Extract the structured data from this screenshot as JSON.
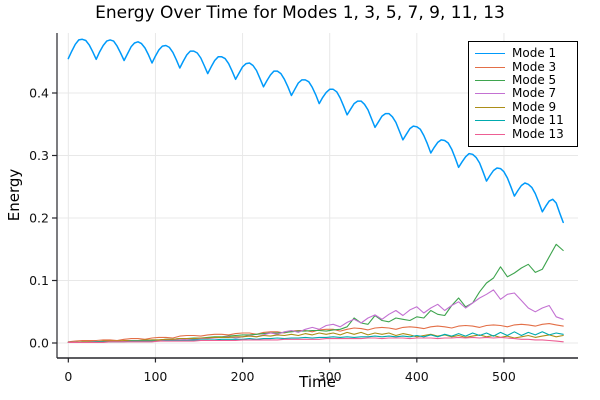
{
  "chart_data": {
    "type": "line",
    "title": "Energy Over Time for Modes 1, 3, 5, 7, 9, 11, 13",
    "xlabel": "Time",
    "ylabel": "Energy",
    "xlim": [
      -13,
      585
    ],
    "ylim": [
      -0.024,
      0.496
    ],
    "grid": true,
    "legend_position": "top-right",
    "xticks": {
      "values": [
        0,
        100,
        200,
        300,
        400,
        500
      ],
      "labels": [
        "0",
        "100",
        "200",
        "300",
        "400",
        "500"
      ]
    },
    "yticks": {
      "values": [
        0.0,
        0.1,
        0.2,
        0.3,
        0.4
      ],
      "labels": [
        "0.0",
        "0.1",
        "0.2",
        "0.3",
        "0.4"
      ]
    },
    "axis_color": "#26262b",
    "grid_color": "#e8e8e8",
    "series": [
      {
        "name": "Mode 1",
        "color": "#009AFA",
        "x": [
          0,
          4,
          8,
          12,
          16,
          20,
          24,
          28,
          32,
          36,
          40,
          44,
          48,
          52,
          56,
          60,
          64,
          68,
          72,
          76,
          80,
          84,
          88,
          92,
          96,
          100,
          104,
          108,
          112,
          116,
          120,
          124,
          128,
          132,
          136,
          140,
          144,
          148,
          152,
          156,
          160,
          164,
          168,
          172,
          176,
          180,
          184,
          188,
          192,
          196,
          200,
          204,
          208,
          212,
          216,
          220,
          224,
          228,
          232,
          236,
          240,
          244,
          248,
          252,
          256,
          260,
          264,
          268,
          272,
          276,
          280,
          284,
          288,
          292,
          296,
          300,
          304,
          308,
          312,
          316,
          320,
          324,
          328,
          332,
          336,
          340,
          344,
          348,
          352,
          356,
          360,
          364,
          368,
          372,
          376,
          380,
          384,
          388,
          392,
          396,
          400,
          404,
          408,
          412,
          416,
          420,
          424,
          428,
          432,
          436,
          440,
          444,
          448,
          452,
          456,
          460,
          464,
          468,
          472,
          476,
          480,
          484,
          488,
          492,
          496,
          500,
          504,
          508,
          512,
          516,
          520,
          524,
          528,
          532,
          536,
          540,
          544,
          548,
          552,
          556,
          560,
          564,
          568
        ],
        "y": [
          0.455,
          0.467,
          0.478,
          0.485,
          0.486,
          0.484,
          0.477,
          0.466,
          0.454,
          0.466,
          0.476,
          0.483,
          0.485,
          0.483,
          0.475,
          0.464,
          0.452,
          0.463,
          0.474,
          0.48,
          0.482,
          0.479,
          0.472,
          0.461,
          0.448,
          0.459,
          0.469,
          0.475,
          0.476,
          0.473,
          0.465,
          0.453,
          0.44,
          0.451,
          0.461,
          0.467,
          0.467,
          0.464,
          0.456,
          0.444,
          0.431,
          0.442,
          0.452,
          0.458,
          0.458,
          0.455,
          0.447,
          0.435,
          0.422,
          0.432,
          0.442,
          0.447,
          0.448,
          0.444,
          0.436,
          0.423,
          0.41,
          0.42,
          0.429,
          0.435,
          0.435,
          0.431,
          0.422,
          0.41,
          0.396,
          0.406,
          0.416,
          0.421,
          0.421,
          0.418,
          0.409,
          0.397,
          0.383,
          0.393,
          0.401,
          0.406,
          0.406,
          0.402,
          0.392,
          0.379,
          0.365,
          0.374,
          0.383,
          0.387,
          0.387,
          0.382,
          0.373,
          0.359,
          0.345,
          0.354,
          0.363,
          0.367,
          0.367,
          0.362,
          0.353,
          0.339,
          0.325,
          0.334,
          0.343,
          0.347,
          0.346,
          0.342,
          0.332,
          0.319,
          0.304,
          0.313,
          0.321,
          0.325,
          0.324,
          0.32,
          0.31,
          0.296,
          0.281,
          0.29,
          0.298,
          0.303,
          0.302,
          0.297,
          0.288,
          0.274,
          0.259,
          0.268,
          0.276,
          0.28,
          0.279,
          0.274,
          0.264,
          0.25,
          0.235,
          0.244,
          0.252,
          0.256,
          0.254,
          0.249,
          0.239,
          0.225,
          0.21,
          0.219,
          0.227,
          0.23,
          0.224,
          0.208,
          0.193
        ]
      },
      {
        "name": "Mode 3",
        "color": "#E36F47",
        "x": [
          0,
          8,
          16,
          24,
          32,
          40,
          48,
          56,
          64,
          72,
          80,
          88,
          96,
          104,
          112,
          120,
          128,
          136,
          144,
          152,
          160,
          168,
          176,
          184,
          192,
          200,
          208,
          216,
          224,
          232,
          240,
          248,
          256,
          264,
          272,
          280,
          288,
          296,
          304,
          312,
          320,
          328,
          336,
          344,
          352,
          360,
          368,
          376,
          384,
          392,
          400,
          408,
          416,
          424,
          432,
          440,
          448,
          456,
          464,
          472,
          480,
          488,
          496,
          504,
          512,
          520,
          528,
          536,
          544,
          552,
          560,
          568
        ],
        "y": [
          0.002,
          0.003,
          0.004,
          0.004,
          0.004,
          0.005,
          0.005,
          0.004,
          0.006,
          0.007,
          0.007,
          0.006,
          0.008,
          0.009,
          0.009,
          0.008,
          0.011,
          0.012,
          0.012,
          0.011,
          0.013,
          0.014,
          0.014,
          0.013,
          0.015,
          0.016,
          0.016,
          0.014,
          0.017,
          0.018,
          0.018,
          0.016,
          0.019,
          0.02,
          0.02,
          0.018,
          0.021,
          0.022,
          0.022,
          0.019,
          0.022,
          0.024,
          0.023,
          0.021,
          0.024,
          0.025,
          0.024,
          0.022,
          0.025,
          0.026,
          0.025,
          0.023,
          0.026,
          0.027,
          0.026,
          0.024,
          0.027,
          0.028,
          0.027,
          0.025,
          0.028,
          0.029,
          0.028,
          0.026,
          0.029,
          0.03,
          0.029,
          0.027,
          0.03,
          0.031,
          0.029,
          0.027
        ]
      },
      {
        "name": "Mode 5",
        "color": "#3EA44E",
        "x": [
          0,
          8,
          16,
          24,
          32,
          40,
          48,
          56,
          64,
          72,
          80,
          88,
          96,
          104,
          112,
          120,
          128,
          136,
          144,
          152,
          160,
          168,
          176,
          184,
          192,
          200,
          208,
          216,
          224,
          232,
          240,
          248,
          256,
          264,
          272,
          280,
          288,
          296,
          304,
          312,
          320,
          328,
          336,
          344,
          352,
          360,
          368,
          376,
          384,
          392,
          400,
          408,
          416,
          424,
          432,
          440,
          448,
          456,
          464,
          472,
          480,
          488,
          496,
          504,
          512,
          520,
          528,
          536,
          544,
          552,
          560,
          568
        ],
        "y": [
          0.001,
          0.001,
          0.002,
          0.002,
          0.002,
          0.002,
          0.003,
          0.003,
          0.003,
          0.004,
          0.004,
          0.004,
          0.005,
          0.005,
          0.006,
          0.006,
          0.007,
          0.007,
          0.008,
          0.008,
          0.009,
          0.01,
          0.01,
          0.011,
          0.012,
          0.013,
          0.013,
          0.014,
          0.015,
          0.016,
          0.016,
          0.017,
          0.018,
          0.019,
          0.019,
          0.02,
          0.02,
          0.019,
          0.021,
          0.022,
          0.026,
          0.04,
          0.032,
          0.03,
          0.044,
          0.036,
          0.034,
          0.04,
          0.038,
          0.036,
          0.042,
          0.04,
          0.052,
          0.046,
          0.044,
          0.06,
          0.072,
          0.058,
          0.064,
          0.082,
          0.096,
          0.104,
          0.122,
          0.106,
          0.112,
          0.12,
          0.126,
          0.113,
          0.118,
          0.138,
          0.158,
          0.148
        ]
      },
      {
        "name": "Mode 7",
        "color": "#C371D2",
        "x": [
          0,
          8,
          16,
          24,
          32,
          40,
          48,
          56,
          64,
          72,
          80,
          88,
          96,
          104,
          112,
          120,
          128,
          136,
          144,
          152,
          160,
          168,
          176,
          184,
          192,
          200,
          208,
          216,
          224,
          232,
          240,
          248,
          256,
          264,
          272,
          280,
          288,
          296,
          304,
          312,
          320,
          328,
          336,
          344,
          352,
          360,
          368,
          376,
          384,
          392,
          400,
          408,
          416,
          424,
          432,
          440,
          448,
          456,
          464,
          472,
          480,
          488,
          496,
          504,
          512,
          520,
          528,
          536,
          544,
          552,
          560,
          568
        ],
        "y": [
          0.001,
          0.001,
          0.001,
          0.002,
          0.002,
          0.002,
          0.002,
          0.003,
          0.003,
          0.003,
          0.003,
          0.004,
          0.004,
          0.004,
          0.005,
          0.005,
          0.005,
          0.006,
          0.006,
          0.007,
          0.007,
          0.008,
          0.009,
          0.01,
          0.008,
          0.01,
          0.012,
          0.01,
          0.013,
          0.016,
          0.014,
          0.018,
          0.02,
          0.017,
          0.022,
          0.025,
          0.022,
          0.028,
          0.03,
          0.026,
          0.033,
          0.038,
          0.032,
          0.04,
          0.045,
          0.038,
          0.046,
          0.052,
          0.044,
          0.053,
          0.058,
          0.048,
          0.056,
          0.062,
          0.052,
          0.06,
          0.066,
          0.056,
          0.064,
          0.072,
          0.078,
          0.085,
          0.07,
          0.078,
          0.08,
          0.068,
          0.056,
          0.05,
          0.056,
          0.06,
          0.042,
          0.038
        ]
      },
      {
        "name": "Mode 9",
        "color": "#AC8E18",
        "x": [
          0,
          8,
          16,
          24,
          32,
          40,
          48,
          56,
          64,
          72,
          80,
          88,
          96,
          104,
          112,
          120,
          128,
          136,
          144,
          152,
          160,
          168,
          176,
          184,
          192,
          200,
          208,
          216,
          224,
          232,
          240,
          248,
          256,
          264,
          272,
          280,
          288,
          296,
          304,
          312,
          320,
          328,
          336,
          344,
          352,
          360,
          368,
          376,
          384,
          392,
          400,
          408,
          416,
          424,
          432,
          440,
          448,
          456,
          464,
          472,
          480,
          488,
          496,
          504,
          512,
          520,
          528,
          536,
          544,
          552,
          560,
          568
        ],
        "y": [
          0.001,
          0.001,
          0.002,
          0.002,
          0.002,
          0.003,
          0.003,
          0.003,
          0.004,
          0.004,
          0.004,
          0.005,
          0.005,
          0.005,
          0.006,
          0.006,
          0.007,
          0.007,
          0.007,
          0.008,
          0.008,
          0.009,
          0.009,
          0.009,
          0.01,
          0.01,
          0.011,
          0.01,
          0.012,
          0.011,
          0.013,
          0.012,
          0.014,
          0.012,
          0.015,
          0.013,
          0.016,
          0.014,
          0.016,
          0.013,
          0.017,
          0.014,
          0.017,
          0.013,
          0.016,
          0.014,
          0.016,
          0.012,
          0.015,
          0.013,
          0.01,
          0.012,
          0.014,
          0.011,
          0.013,
          0.01,
          0.012,
          0.009,
          0.011,
          0.013,
          0.01,
          0.012,
          0.009,
          0.011,
          0.008,
          0.01,
          0.012,
          0.009,
          0.011,
          0.013,
          0.01,
          0.012
        ]
      },
      {
        "name": "Mode 11",
        "color": "#00AAAE",
        "x": [
          0,
          8,
          16,
          24,
          32,
          40,
          48,
          56,
          64,
          72,
          80,
          88,
          96,
          104,
          112,
          120,
          128,
          136,
          144,
          152,
          160,
          168,
          176,
          184,
          192,
          200,
          208,
          216,
          224,
          232,
          240,
          248,
          256,
          264,
          272,
          280,
          288,
          296,
          304,
          312,
          320,
          328,
          336,
          344,
          352,
          360,
          368,
          376,
          384,
          392,
          400,
          408,
          416,
          424,
          432,
          440,
          448,
          456,
          464,
          472,
          480,
          488,
          496,
          504,
          512,
          520,
          528,
          536,
          544,
          552,
          560,
          568
        ],
        "y": [
          0.001,
          0.001,
          0.001,
          0.001,
          0.002,
          0.002,
          0.002,
          0.002,
          0.002,
          0.003,
          0.003,
          0.003,
          0.003,
          0.003,
          0.004,
          0.004,
          0.004,
          0.004,
          0.005,
          0.005,
          0.005,
          0.005,
          0.006,
          0.006,
          0.006,
          0.006,
          0.007,
          0.006,
          0.007,
          0.007,
          0.008,
          0.007,
          0.008,
          0.008,
          0.009,
          0.008,
          0.009,
          0.009,
          0.01,
          0.009,
          0.01,
          0.009,
          0.01,
          0.01,
          0.011,
          0.01,
          0.011,
          0.01,
          0.011,
          0.01,
          0.012,
          0.01,
          0.013,
          0.01,
          0.014,
          0.011,
          0.015,
          0.011,
          0.016,
          0.012,
          0.016,
          0.011,
          0.017,
          0.012,
          0.018,
          0.012,
          0.017,
          0.013,
          0.018,
          0.013,
          0.016,
          0.014
        ]
      },
      {
        "name": "Mode 13",
        "color": "#ED5E93",
        "x": [
          0,
          8,
          16,
          24,
          32,
          40,
          48,
          56,
          64,
          72,
          80,
          88,
          96,
          104,
          112,
          120,
          128,
          136,
          144,
          152,
          160,
          168,
          176,
          184,
          192,
          200,
          208,
          216,
          224,
          232,
          240,
          248,
          256,
          264,
          272,
          280,
          288,
          296,
          304,
          312,
          320,
          328,
          336,
          344,
          352,
          360,
          368,
          376,
          384,
          392,
          400,
          408,
          416,
          424,
          432,
          440,
          448,
          456,
          464,
          472,
          480,
          488,
          496,
          504,
          512,
          520,
          528,
          536,
          544,
          552,
          560,
          568
        ],
        "y": [
          0.001,
          0.001,
          0.001,
          0.001,
          0.001,
          0.001,
          0.002,
          0.002,
          0.002,
          0.002,
          0.002,
          0.002,
          0.002,
          0.003,
          0.003,
          0.003,
          0.003,
          0.003,
          0.003,
          0.004,
          0.004,
          0.004,
          0.004,
          0.004,
          0.004,
          0.005,
          0.005,
          0.005,
          0.005,
          0.005,
          0.005,
          0.006,
          0.006,
          0.006,
          0.006,
          0.006,
          0.006,
          0.007,
          0.007,
          0.007,
          0.007,
          0.007,
          0.007,
          0.008,
          0.008,
          0.007,
          0.008,
          0.008,
          0.008,
          0.007,
          0.008,
          0.008,
          0.008,
          0.007,
          0.008,
          0.008,
          0.009,
          0.008,
          0.009,
          0.008,
          0.009,
          0.008,
          0.009,
          0.008,
          0.007,
          0.006,
          0.006,
          0.005,
          0.005,
          0.004,
          0.003,
          0.002
        ]
      }
    ]
  }
}
